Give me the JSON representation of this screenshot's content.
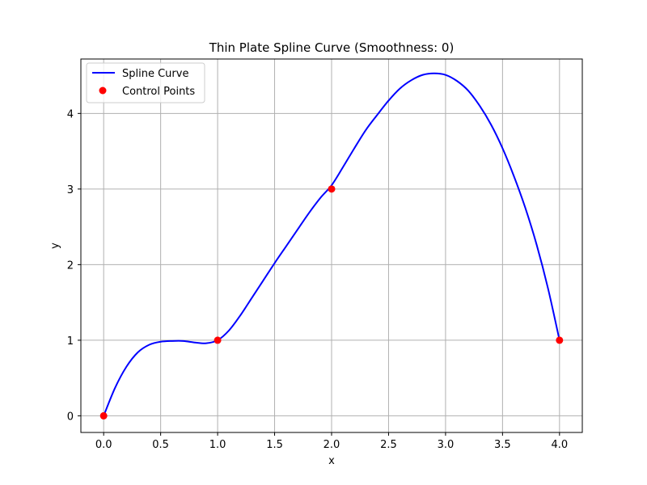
{
  "colors": {
    "curve": "#0000ff",
    "points": "#ff0000",
    "grid": "#b0b0b0",
    "axes": "#000000",
    "background": "#ffffff"
  },
  "chart_data": {
    "type": "line",
    "title": "Thin Plate Spline Curve (Smoothness: 0)",
    "xlabel": "x",
    "ylabel": "y",
    "xlim": [
      -0.2,
      4.2
    ],
    "ylim": [
      -0.22,
      4.72
    ],
    "xticks": [
      0.0,
      0.5,
      1.0,
      1.5,
      2.0,
      2.5,
      3.0,
      3.5,
      4.0
    ],
    "xtick_labels": [
      "0.0",
      "0.5",
      "1.0",
      "1.5",
      "2.0",
      "2.5",
      "3.0",
      "3.5",
      "4.0"
    ],
    "yticks": [
      0,
      1,
      2,
      3,
      4
    ],
    "ytick_labels": [
      "0",
      "1",
      "2",
      "3",
      "4"
    ],
    "grid": true,
    "legend_position": "top-left",
    "series": [
      {
        "name": "Spline Curve",
        "kind": "line",
        "x": [
          0.0,
          0.1,
          0.2,
          0.3,
          0.4,
          0.5,
          0.6,
          0.7,
          0.8,
          0.9,
          1.0,
          1.1,
          1.2,
          1.3,
          1.4,
          1.5,
          1.6,
          1.7,
          1.8,
          1.9,
          2.0,
          2.1,
          2.2,
          2.3,
          2.4,
          2.5,
          2.6,
          2.7,
          2.8,
          2.9,
          3.0,
          3.1,
          3.2,
          3.3,
          3.4,
          3.5,
          3.6,
          3.7,
          3.8,
          3.9,
          4.0
        ],
        "y": [
          0.0,
          0.37,
          0.65,
          0.84,
          0.94,
          0.98,
          0.99,
          0.99,
          0.97,
          0.96,
          1.0,
          1.13,
          1.33,
          1.56,
          1.79,
          2.02,
          2.24,
          2.46,
          2.68,
          2.88,
          3.05,
          3.29,
          3.54,
          3.78,
          3.98,
          4.17,
          4.33,
          4.44,
          4.51,
          4.53,
          4.51,
          4.43,
          4.3,
          4.1,
          3.85,
          3.54,
          3.17,
          2.75,
          2.26,
          1.68,
          1.0
        ]
      },
      {
        "name": "Control Points",
        "kind": "scatter",
        "x": [
          0,
          1,
          2,
          4
        ],
        "y": [
          0,
          1,
          3,
          1
        ]
      }
    ]
  }
}
